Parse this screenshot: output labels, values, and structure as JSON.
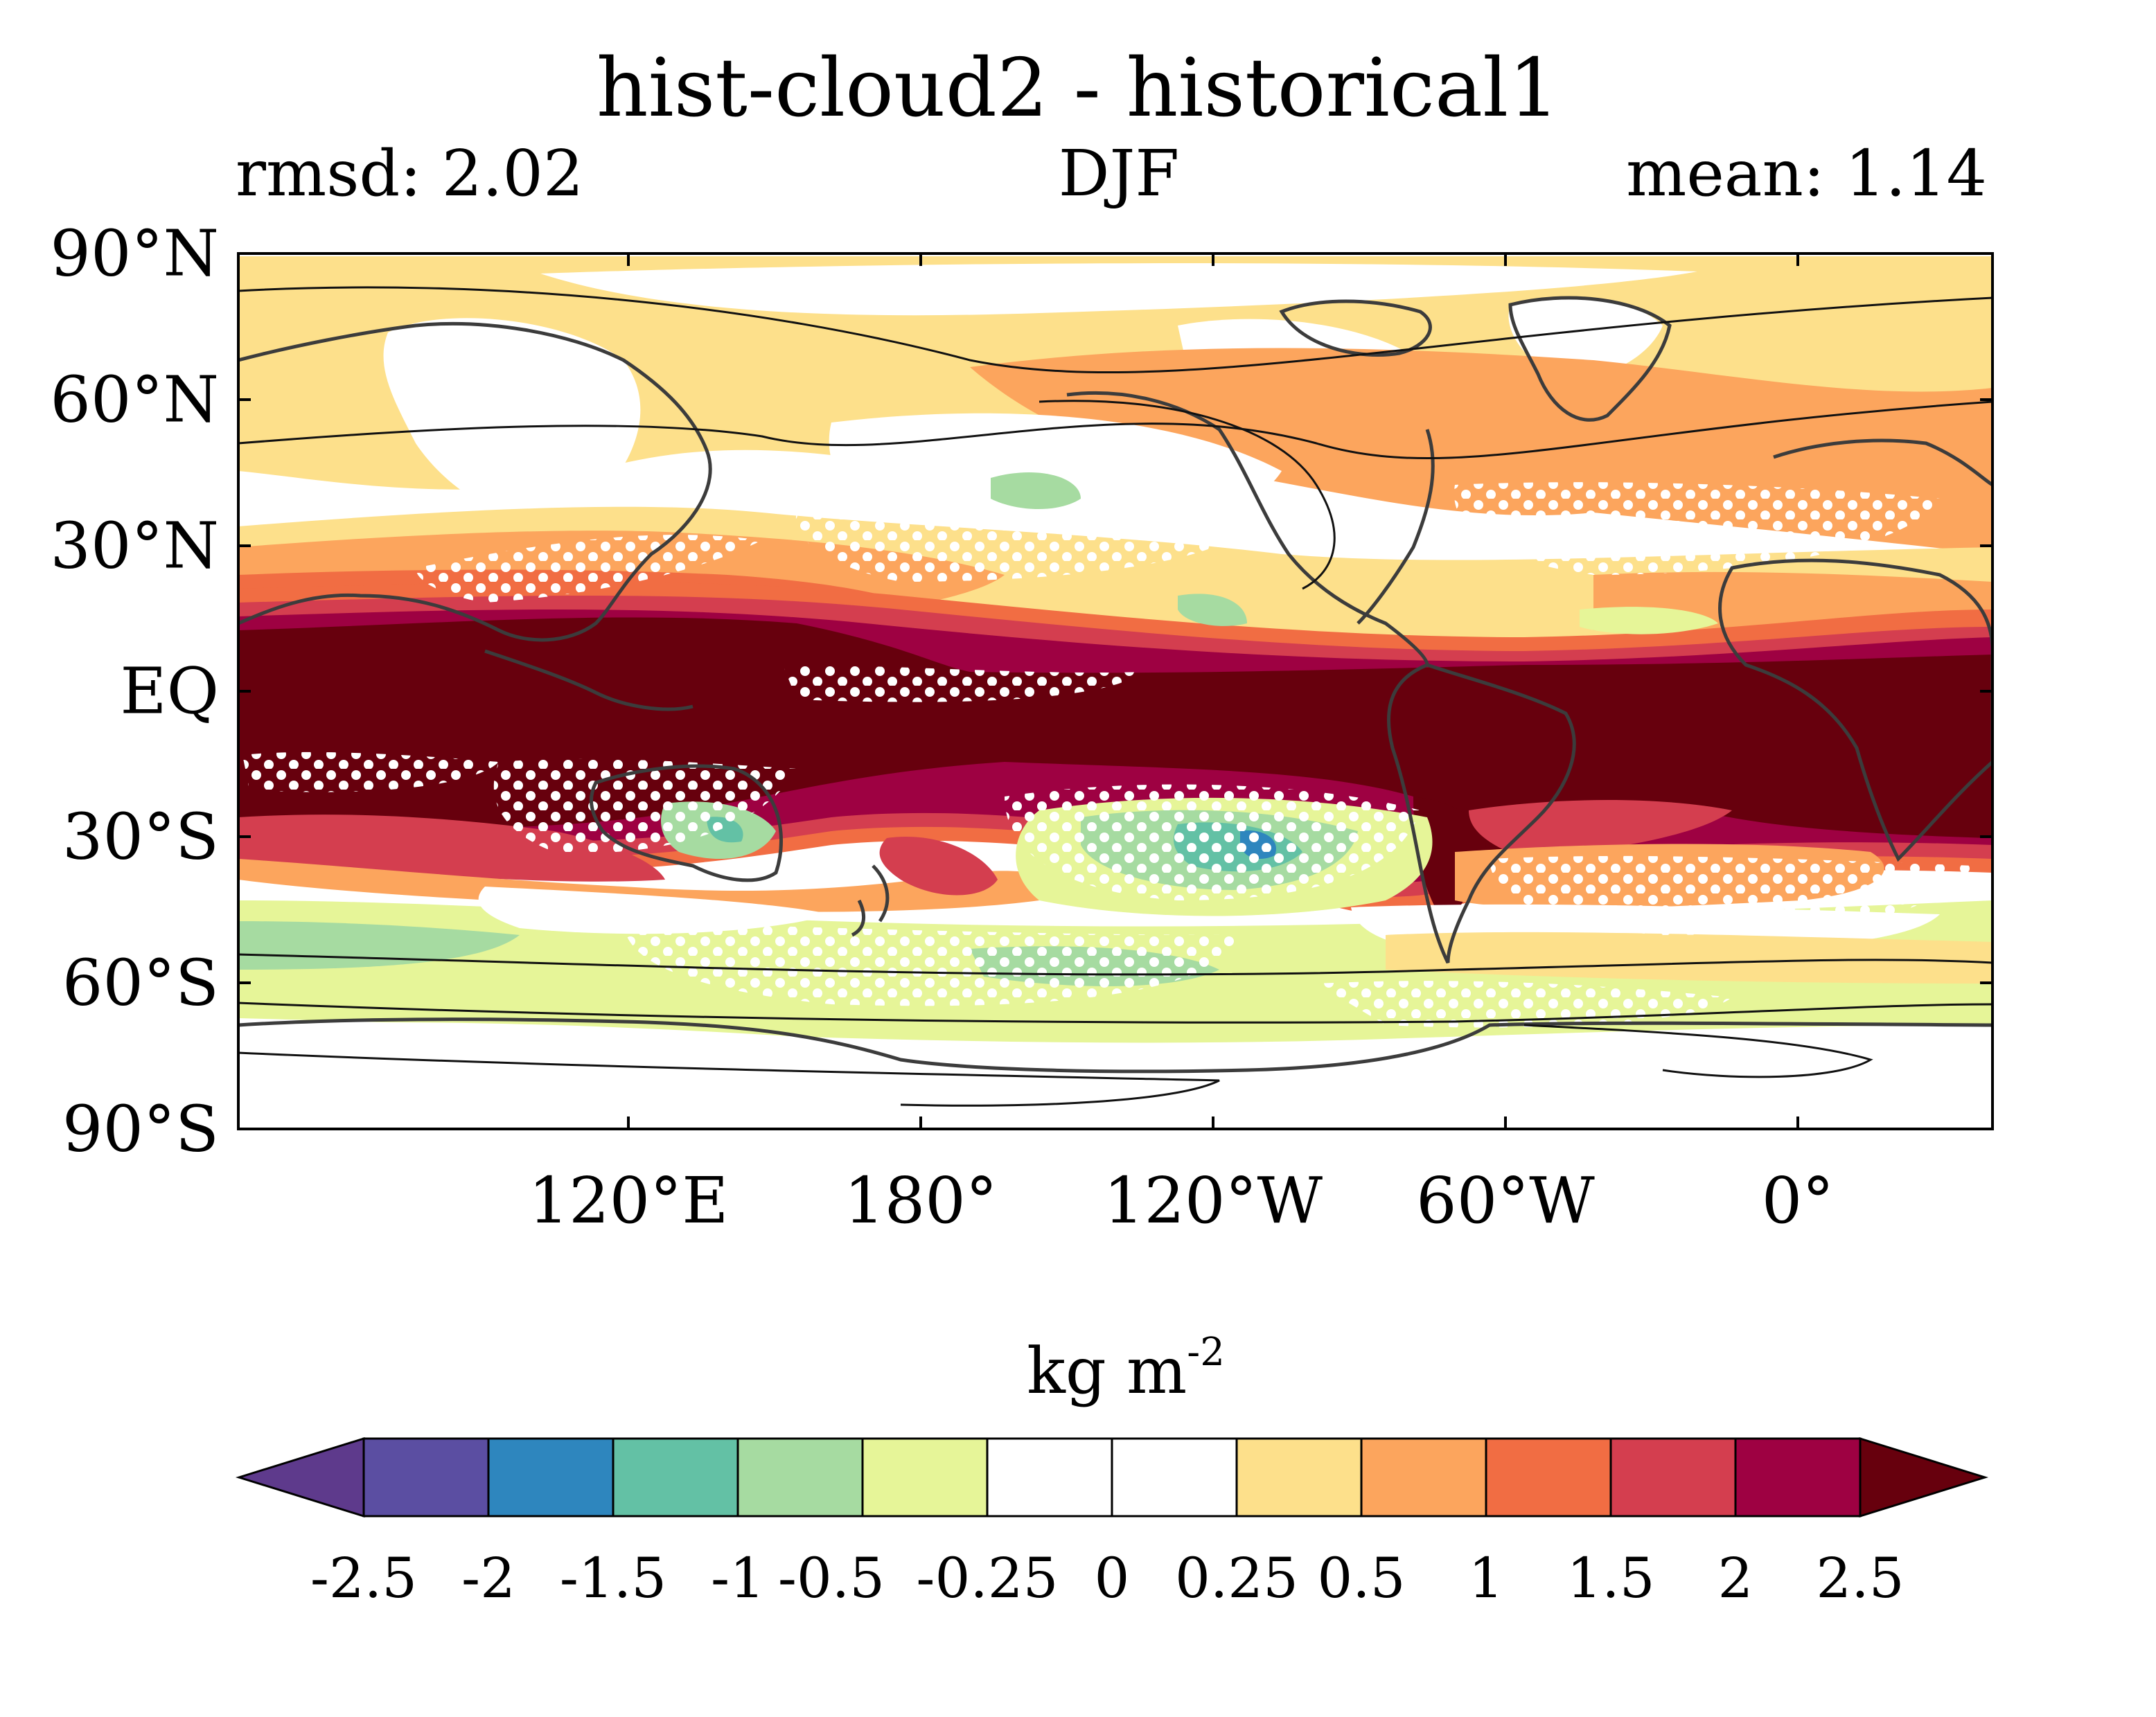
{
  "title": "hist-cloud2 - historical1",
  "subtitle": {
    "left": "rmsd: 2.02",
    "center": "DJF",
    "right": "mean: 1.14"
  },
  "map": {
    "projection": "cylindrical-equidistant",
    "lon_range": [
      40,
      400
    ],
    "lat_range": [
      -90,
      90
    ],
    "lat_ticks": [
      "90°N",
      "60°N",
      "30°N",
      "EQ",
      "30°S",
      "60°S",
      "90°S"
    ],
    "lon_ticks": [
      "120°E",
      "180°",
      "120°W",
      "60°W",
      "0°"
    ],
    "stippling": "white dots mark significant differences"
  },
  "colorbar": {
    "title": "kg m",
    "exponent": "-2",
    "labels": [
      "-2.5",
      "-2",
      "-1.5",
      "-1",
      "-0.5",
      "-0.25",
      "0",
      "0.25",
      "0.5",
      "1",
      "1.5",
      "2",
      "2.5"
    ],
    "colors": [
      "#5e3a8c",
      "#5b4ea2",
      "#2e86be",
      "#63c1a5",
      "#a6dba1",
      "#e6f598",
      "#ffffff",
      "#ffffff",
      "#fde08b",
      "#fca55d",
      "#f16d43",
      "#d43e4f",
      "#9e0142",
      "#67000d"
    ]
  },
  "colors": {
    "deep_red": "#67000d",
    "crimson": "#9e0142",
    "red": "#d43e4f",
    "orange_red": "#f16d43",
    "orange": "#fca55d",
    "light_orange": "#fde08b",
    "light_yellow_green": "#e6f598",
    "light_green": "#a6dba1",
    "teal": "#63c1a5",
    "blue": "#2e86be"
  }
}
